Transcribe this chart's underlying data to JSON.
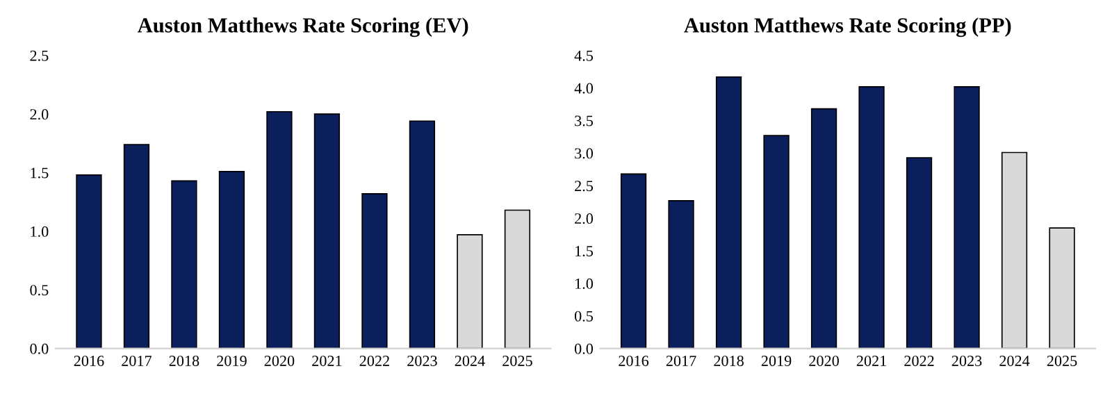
{
  "chart_data": [
    {
      "type": "bar",
      "title": "Auston Matthews Rate Scoring (EV)",
      "categories": [
        "2016",
        "2017",
        "2018",
        "2019",
        "2020",
        "2021",
        "2022",
        "2023",
        "2024",
        "2025"
      ],
      "values": [
        1.48,
        1.74,
        1.43,
        1.51,
        2.02,
        2.0,
        1.32,
        1.94,
        0.97,
        1.18
      ],
      "colors": [
        "#0b1f5c",
        "#0b1f5c",
        "#0b1f5c",
        "#0b1f5c",
        "#0b1f5c",
        "#0b1f5c",
        "#0b1f5c",
        "#0b1f5c",
        "#d9d9d9",
        "#d9d9d9"
      ],
      "ylim": [
        0,
        2.5
      ],
      "yticks": [
        {
          "value": 0,
          "label": "0.0"
        },
        0.5,
        {
          "value": 1,
          "label": "1.0"
        },
        1.5,
        {
          "value": 2,
          "label": "2.0"
        },
        2.5
      ],
      "grid": false,
      "legend": false
    },
    {
      "type": "bar",
      "title": "Auston Matthews Rate Scoring (PP)",
      "categories": [
        "2016",
        "2017",
        "2018",
        "2019",
        "2020",
        "2021",
        "2022",
        "2023",
        "2024",
        "2025"
      ],
      "values": [
        2.68,
        2.27,
        4.17,
        3.27,
        3.68,
        4.02,
        2.93,
        4.02,
        3.01,
        1.85
      ],
      "colors": [
        "#0b1f5c",
        "#0b1f5c",
        "#0b1f5c",
        "#0b1f5c",
        "#0b1f5c",
        "#0b1f5c",
        "#0b1f5c",
        "#0b1f5c",
        "#d9d9d9",
        "#d9d9d9"
      ],
      "ylim": [
        0,
        4.5
      ],
      "yticks": [
        {
          "value": 0,
          "label": "0.0"
        },
        0.5,
        {
          "value": 1,
          "label": "1.0"
        },
        1.5,
        {
          "value": 2,
          "label": "2.0"
        },
        2.5,
        {
          "value": 3,
          "label": "3.0"
        },
        3.5,
        {
          "value": 4,
          "label": "4.0"
        },
        4.5
      ],
      "grid": false,
      "legend": false
    }
  ]
}
